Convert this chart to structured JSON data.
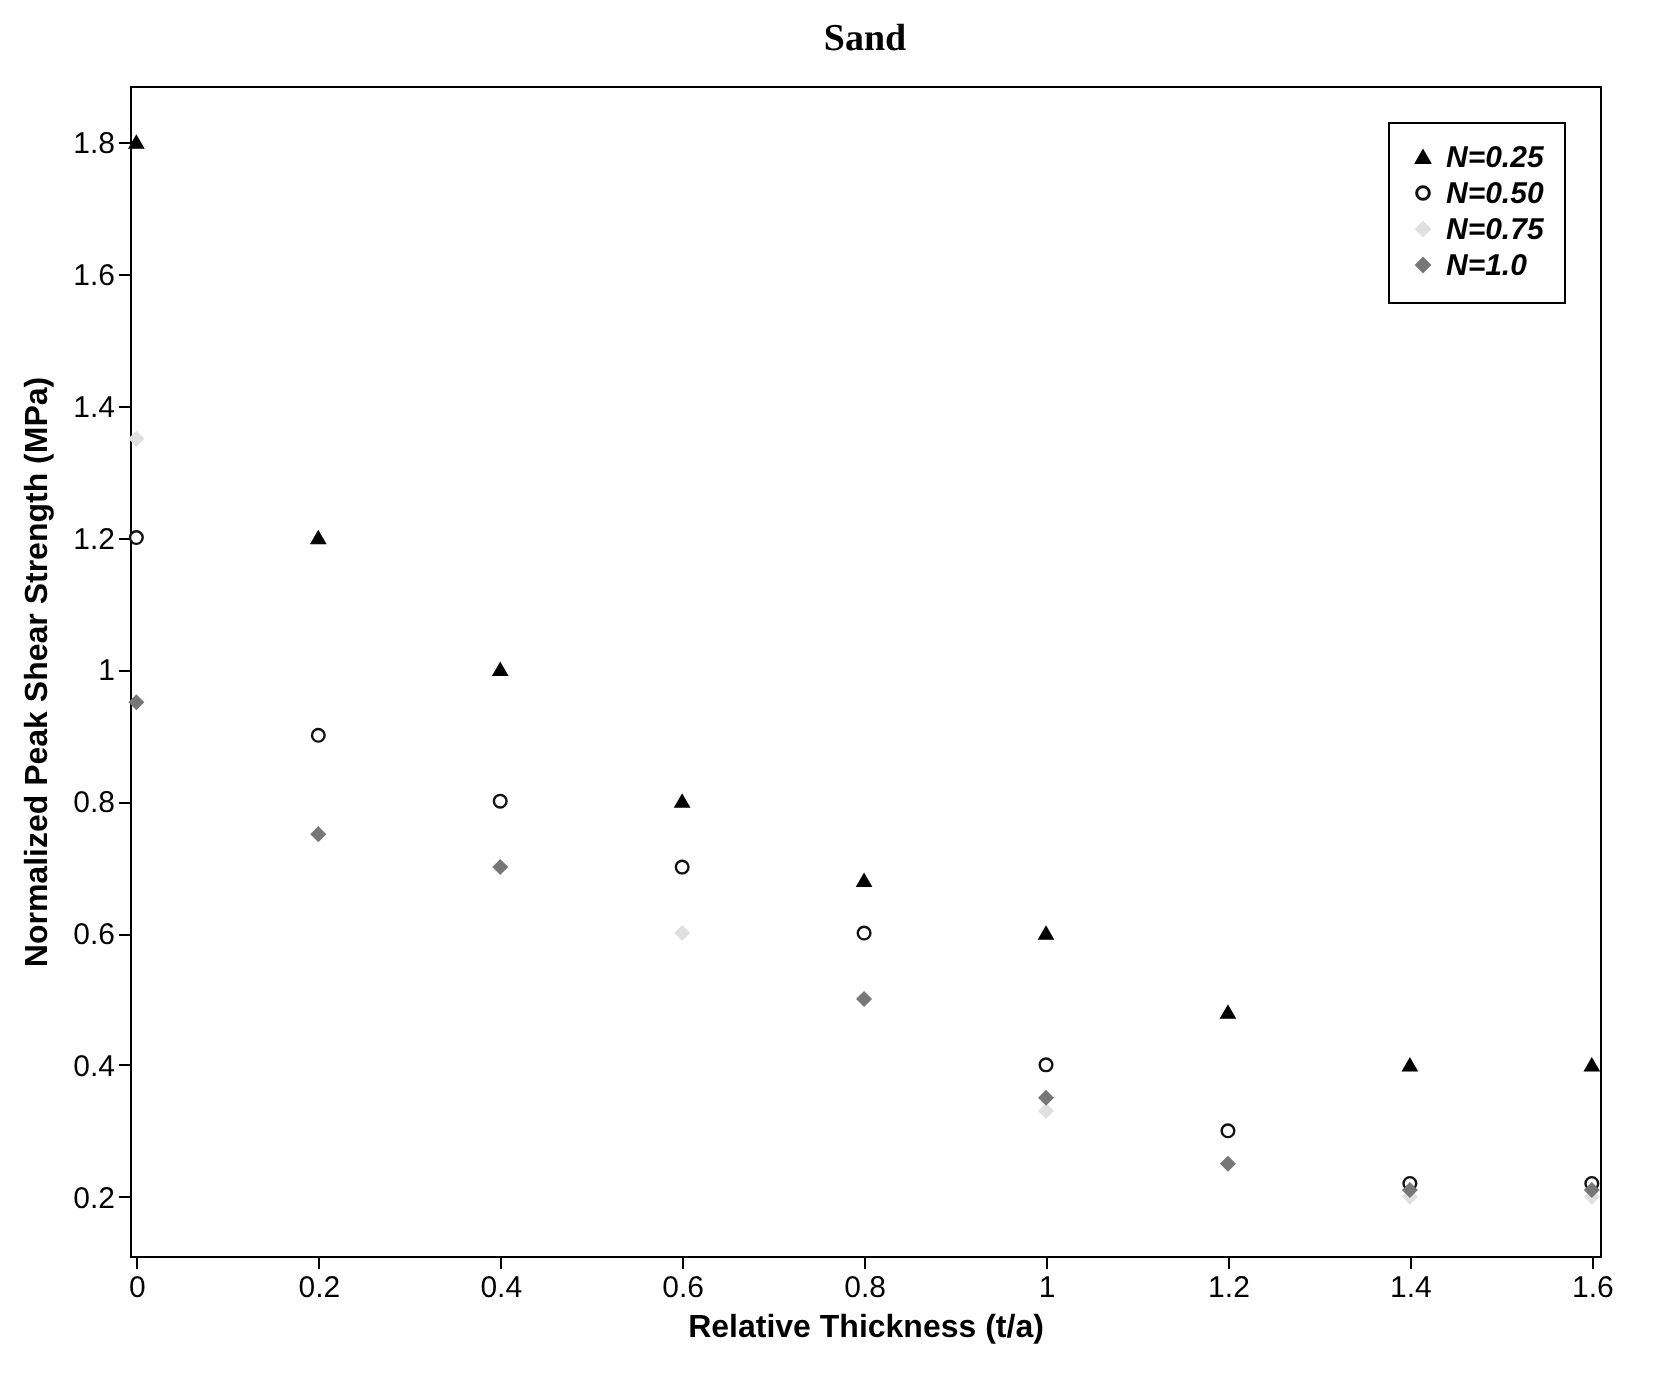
{
  "chart_data": {
    "type": "scatter",
    "title": "Sand",
    "xlabel": "Relative Thickness (t/a)",
    "ylabel": "Normalized Peak Shear Strength (MPa)",
    "x": [
      0,
      0.2,
      0.4,
      0.6,
      0.8,
      1.0,
      1.2,
      1.4,
      1.6
    ],
    "series": [
      {
        "name": "N=0.25",
        "color": "#000000",
        "marker": "triangle",
        "values": [
          1.8,
          1.2,
          1.0,
          0.8,
          0.68,
          0.6,
          0.48,
          0.4,
          0.4
        ]
      },
      {
        "name": "N=0.50",
        "color": "#111111",
        "marker": "circle",
        "values": [
          1.2,
          0.9,
          0.8,
          0.7,
          0.6,
          0.4,
          0.3,
          0.22,
          0.22
        ]
      },
      {
        "name": "N=0.75",
        "color": "#e0e0e0",
        "marker": "diamond",
        "values": [
          1.35,
          null,
          null,
          0.6,
          null,
          0.33,
          null,
          0.2,
          0.2
        ]
      },
      {
        "name": "N=1.0",
        "color": "#777777",
        "marker": "diamond",
        "values": [
          0.95,
          0.75,
          0.7,
          null,
          0.5,
          0.35,
          0.25,
          0.21,
          0.21
        ]
      }
    ],
    "xlim": [
      -0.007,
      1.609
    ],
    "xticks": [
      {
        "value": 0,
        "label": "0"
      },
      0.2,
      0.4,
      0.6,
      0.8,
      {
        "value": 1,
        "label": "1"
      },
      1.2,
      1.4,
      1.6
    ],
    "ylim": [
      0.11,
      1.885
    ],
    "yticks": [
      0.2,
      0.4,
      0.6,
      0.8,
      {
        "value": 1,
        "label": "1"
      },
      1.2,
      1.4,
      1.6,
      1.8
    ],
    "grid": false,
    "legend": "top right"
  }
}
